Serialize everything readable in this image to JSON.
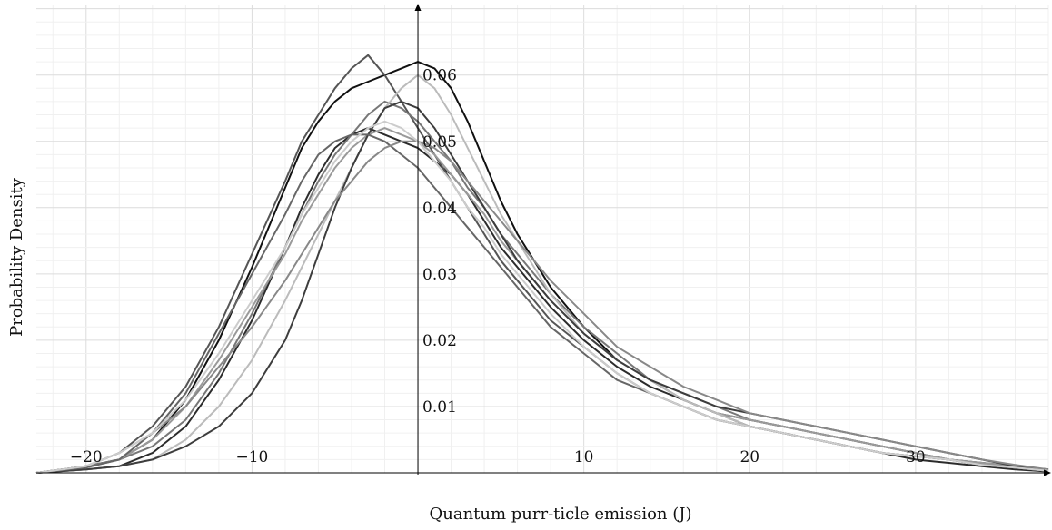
{
  "chart_data": {
    "type": "line",
    "title": "",
    "xlabel": "Quantum purr-ticle emission (J)",
    "ylabel": "Probability Density",
    "xlim": [
      -23,
      38
    ],
    "ylim": [
      0,
      0.0705
    ],
    "grid": true,
    "legend": "none",
    "x_ticks": [
      -20,
      -10,
      10,
      20,
      30
    ],
    "x_tick_labels": [
      "−20",
      "−10",
      "10",
      "20",
      "30"
    ],
    "y_ticks": [
      0.01,
      0.02,
      0.03,
      0.04,
      0.05,
      0.06
    ],
    "y_tick_labels": [
      "0.01",
      "0.02",
      "0.03",
      "0.04",
      "0.05",
      "0.06"
    ],
    "series": [
      {
        "color": "#111111",
        "x": [
          -23,
          -20,
          -18,
          -16,
          -14,
          -12,
          -10,
          -8,
          -7,
          -6,
          -5,
          -4,
          -3,
          -2,
          -1,
          0,
          1,
          2,
          3,
          4,
          5,
          6,
          7,
          8,
          10,
          12,
          14,
          16,
          18,
          20,
          22,
          24,
          26,
          28,
          30,
          32,
          34,
          36,
          38
        ],
        "y": [
          0.0,
          0.001,
          0.002,
          0.005,
          0.011,
          0.02,
          0.031,
          0.043,
          0.049,
          0.053,
          0.056,
          0.058,
          0.059,
          0.06,
          0.061,
          0.062,
          0.061,
          0.058,
          0.053,
          0.047,
          0.041,
          0.036,
          0.032,
          0.028,
          0.022,
          0.017,
          0.014,
          0.011,
          0.009,
          0.008,
          0.007,
          0.006,
          0.005,
          0.004,
          0.003,
          0.002,
          0.0015,
          0.001,
          0.0005
        ]
      },
      {
        "color": "#2b2b2b",
        "x": [
          -23,
          -20,
          -18,
          -16,
          -14,
          -12,
          -10,
          -8,
          -7,
          -6,
          -5,
          -4,
          -3,
          -2,
          -1,
          0,
          1,
          2,
          3,
          4,
          5,
          6,
          7,
          8,
          10,
          12,
          14,
          16,
          18,
          20,
          22,
          24,
          26,
          28,
          30,
          32,
          34,
          36,
          38
        ],
        "y": [
          0.0,
          0.0005,
          0.001,
          0.003,
          0.007,
          0.014,
          0.023,
          0.034,
          0.04,
          0.045,
          0.049,
          0.051,
          0.052,
          0.051,
          0.05,
          0.049,
          0.047,
          0.045,
          0.042,
          0.038,
          0.034,
          0.031,
          0.028,
          0.025,
          0.02,
          0.016,
          0.013,
          0.011,
          0.009,
          0.007,
          0.006,
          0.005,
          0.004,
          0.003,
          0.002,
          0.0015,
          0.001,
          0.0005,
          0.0002
        ]
      },
      {
        "color": "#555555",
        "x": [
          -23,
          -20,
          -18,
          -16,
          -14,
          -12,
          -10,
          -8,
          -7,
          -6,
          -5,
          -4,
          -3,
          -2,
          -1,
          0,
          1,
          2,
          3,
          4,
          5,
          6,
          7,
          8,
          10,
          12,
          14,
          16,
          18,
          20,
          22,
          24,
          26,
          28,
          30,
          32,
          34,
          36,
          38
        ],
        "y": [
          0.0,
          0.001,
          0.003,
          0.007,
          0.013,
          0.022,
          0.033,
          0.044,
          0.05,
          0.054,
          0.058,
          0.061,
          0.063,
          0.06,
          0.056,
          0.052,
          0.048,
          0.044,
          0.04,
          0.036,
          0.032,
          0.029,
          0.026,
          0.023,
          0.019,
          0.015,
          0.012,
          0.01,
          0.008,
          0.007,
          0.006,
          0.005,
          0.004,
          0.003,
          0.0025,
          0.002,
          0.0012,
          0.0008,
          0.0003
        ]
      },
      {
        "color": "#777777",
        "x": [
          -23,
          -20,
          -18,
          -16,
          -14,
          -12,
          -10,
          -8,
          -7,
          -6,
          -5,
          -4,
          -3,
          -2,
          -1,
          0,
          1,
          2,
          3,
          4,
          5,
          6,
          7,
          8,
          10,
          12,
          14,
          16,
          18,
          20,
          22,
          24,
          26,
          28,
          30,
          32,
          34,
          36,
          38
        ],
        "y": [
          0.0,
          0.001,
          0.002,
          0.004,
          0.008,
          0.015,
          0.024,
          0.034,
          0.039,
          0.044,
          0.048,
          0.051,
          0.054,
          0.056,
          0.055,
          0.053,
          0.05,
          0.047,
          0.043,
          0.04,
          0.036,
          0.033,
          0.03,
          0.027,
          0.022,
          0.018,
          0.014,
          0.012,
          0.01,
          0.008,
          0.007,
          0.006,
          0.005,
          0.004,
          0.003,
          0.002,
          0.0015,
          0.001,
          0.0004
        ]
      },
      {
        "color": "#9a9a9a",
        "x": [
          -23,
          -20,
          -18,
          -16,
          -14,
          -12,
          -10,
          -8,
          -7,
          -6,
          -5,
          -4,
          -3,
          -2,
          -1,
          0,
          1,
          2,
          3,
          4,
          5,
          6,
          7,
          8,
          10,
          12,
          14,
          16,
          18,
          20,
          22,
          24,
          26,
          28,
          30,
          32,
          34,
          36,
          38
        ],
        "y": [
          0.0,
          0.0008,
          0.002,
          0.005,
          0.01,
          0.017,
          0.025,
          0.033,
          0.038,
          0.042,
          0.046,
          0.049,
          0.051,
          0.052,
          0.051,
          0.05,
          0.048,
          0.045,
          0.042,
          0.039,
          0.035,
          0.032,
          0.029,
          0.026,
          0.021,
          0.017,
          0.014,
          0.011,
          0.009,
          0.008,
          0.007,
          0.006,
          0.005,
          0.004,
          0.003,
          0.002,
          0.0015,
          0.001,
          0.0004
        ]
      },
      {
        "color": "#bbbbbb",
        "x": [
          -23,
          -20,
          -18,
          -16,
          -14,
          -12,
          -10,
          -8,
          -7,
          -6,
          -5,
          -4,
          -3,
          -2,
          -1,
          0,
          1,
          2,
          3,
          4,
          5,
          6,
          7,
          8,
          10,
          12,
          14,
          16,
          18,
          20,
          22,
          24,
          26,
          28,
          30,
          32,
          34,
          36,
          38
        ],
        "y": [
          0.0,
          0.0005,
          0.001,
          0.002,
          0.005,
          0.01,
          0.017,
          0.026,
          0.031,
          0.036,
          0.041,
          0.046,
          0.051,
          0.055,
          0.058,
          0.06,
          0.058,
          0.054,
          0.049,
          0.044,
          0.039,
          0.035,
          0.031,
          0.027,
          0.021,
          0.017,
          0.014,
          0.011,
          0.009,
          0.007,
          0.006,
          0.005,
          0.004,
          0.003,
          0.0025,
          0.002,
          0.0012,
          0.0008,
          0.0003
        ]
      },
      {
        "color": "#3d3d3d",
        "x": [
          -23,
          -20,
          -18,
          -16,
          -14,
          -12,
          -10,
          -8,
          -7,
          -6,
          -5,
          -4,
          -3,
          -2,
          -1,
          0,
          1,
          2,
          3,
          4,
          5,
          6,
          7,
          8,
          10,
          12,
          14,
          16,
          18,
          20,
          22,
          24,
          26,
          28,
          30,
          32,
          34,
          36,
          38
        ],
        "y": [
          0.0,
          0.0005,
          0.001,
          0.002,
          0.004,
          0.007,
          0.012,
          0.02,
          0.026,
          0.033,
          0.04,
          0.046,
          0.051,
          0.055,
          0.056,
          0.055,
          0.052,
          0.048,
          0.044,
          0.04,
          0.036,
          0.032,
          0.029,
          0.026,
          0.021,
          0.017,
          0.014,
          0.012,
          0.01,
          0.009,
          0.008,
          0.007,
          0.006,
          0.005,
          0.004,
          0.003,
          0.002,
          0.001,
          0.0005
        ]
      },
      {
        "color": "#666666",
        "x": [
          -23,
          -20,
          -18,
          -16,
          -14,
          -12,
          -10,
          -8,
          -7,
          -6,
          -5,
          -4,
          -3,
          -2,
          -1,
          0,
          1,
          2,
          3,
          4,
          5,
          6,
          7,
          8,
          10,
          12,
          14,
          16,
          18,
          20,
          22,
          24,
          26,
          28,
          30,
          32,
          34,
          36,
          38
        ],
        "y": [
          0.0,
          0.0008,
          0.002,
          0.006,
          0.012,
          0.021,
          0.03,
          0.039,
          0.044,
          0.048,
          0.05,
          0.051,
          0.051,
          0.05,
          0.048,
          0.046,
          0.043,
          0.04,
          0.037,
          0.034,
          0.031,
          0.028,
          0.025,
          0.022,
          0.018,
          0.014,
          0.012,
          0.01,
          0.008,
          0.007,
          0.006,
          0.005,
          0.004,
          0.003,
          0.0025,
          0.002,
          0.0012,
          0.0008,
          0.0003
        ]
      },
      {
        "color": "#888888",
        "x": [
          -23,
          -20,
          -18,
          -16,
          -14,
          -12,
          -10,
          -8,
          -7,
          -6,
          -5,
          -4,
          -3,
          -2,
          -1,
          0,
          1,
          2,
          3,
          4,
          5,
          6,
          7,
          8,
          10,
          12,
          14,
          16,
          18,
          20,
          22,
          24,
          26,
          28,
          30,
          32,
          34,
          36,
          38
        ],
        "y": [
          0.0,
          0.001,
          0.003,
          0.006,
          0.01,
          0.016,
          0.022,
          0.029,
          0.033,
          0.037,
          0.041,
          0.044,
          0.047,
          0.049,
          0.05,
          0.05,
          0.049,
          0.047,
          0.044,
          0.041,
          0.038,
          0.035,
          0.032,
          0.029,
          0.024,
          0.019,
          0.016,
          0.013,
          0.011,
          0.009,
          0.008,
          0.007,
          0.006,
          0.005,
          0.004,
          0.003,
          0.002,
          0.0012,
          0.0005
        ]
      },
      {
        "color": "#cccccc",
        "x": [
          -23,
          -20,
          -18,
          -16,
          -14,
          -12,
          -10,
          -8,
          -7,
          -6,
          -5,
          -4,
          -3,
          -2,
          -1,
          0,
          1,
          2,
          3,
          4,
          5,
          6,
          7,
          8,
          10,
          12,
          14,
          16,
          18,
          20,
          22,
          24,
          26,
          28,
          30,
          32,
          34,
          36,
          38
        ],
        "y": [
          0.0,
          0.001,
          0.003,
          0.006,
          0.011,
          0.018,
          0.026,
          0.034,
          0.039,
          0.043,
          0.047,
          0.05,
          0.052,
          0.053,
          0.052,
          0.05,
          0.047,
          0.044,
          0.04,
          0.037,
          0.033,
          0.03,
          0.027,
          0.024,
          0.019,
          0.015,
          0.012,
          0.01,
          0.008,
          0.007,
          0.006,
          0.005,
          0.004,
          0.003,
          0.0025,
          0.002,
          0.0012,
          0.0008,
          0.0003
        ]
      }
    ]
  }
}
